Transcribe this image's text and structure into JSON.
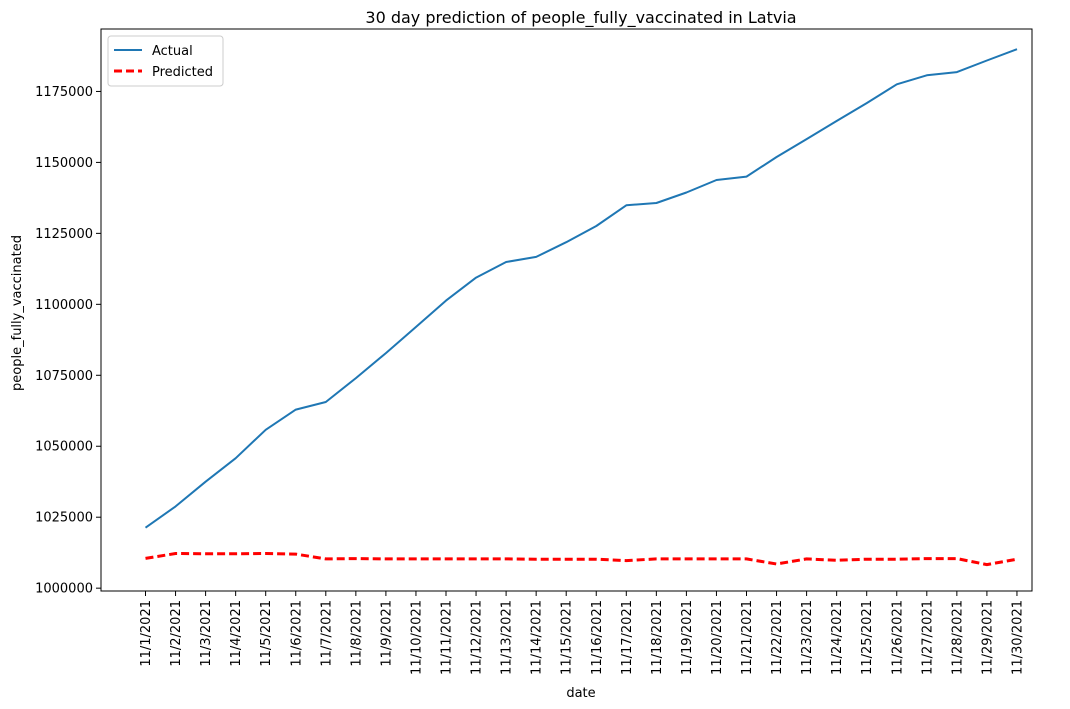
{
  "chart_data": {
    "type": "line",
    "title": "30 day prediction of people_fully_vaccinated in Latvia",
    "xlabel": "date",
    "ylabel": "people_fully_vaccinated",
    "categories": [
      "11/1/2021",
      "11/2/2021",
      "11/3/2021",
      "11/4/2021",
      "11/5/2021",
      "11/6/2021",
      "11/7/2021",
      "11/8/2021",
      "11/9/2021",
      "11/10/2021",
      "11/11/2021",
      "11/12/2021",
      "11/13/2021",
      "11/14/2021",
      "11/15/2021",
      "11/16/2021",
      "11/17/2021",
      "11/18/2021",
      "11/19/2021",
      "11/20/2021",
      "11/21/2021",
      "11/22/2021",
      "11/23/2021",
      "11/24/2021",
      "11/25/2021",
      "11/26/2021",
      "11/27/2021",
      "11/28/2021",
      "11/29/2021",
      "11/30/2021"
    ],
    "ylim": [
      999000,
      1197000
    ],
    "yticks": [
      1000000,
      1025000,
      1050000,
      1075000,
      1100000,
      1125000,
      1150000,
      1175000
    ],
    "ytick_labels": [
      "1000000",
      "1025000",
      "1050000",
      "1075000",
      "1100000",
      "1125000",
      "1150000",
      "1175000"
    ],
    "legend_position": "top-left",
    "grid": false,
    "series": [
      {
        "name": "Actual",
        "color": "#1f77b4",
        "style": "solid",
        "values": [
          1021300,
          1028800,
          1037500,
          1045800,
          1055800,
          1062900,
          1065600,
          1074000,
          1082800,
          1092000,
          1101300,
          1109400,
          1114900,
          1116700,
          1121900,
          1127600,
          1134900,
          1135700,
          1139400,
          1143800,
          1145000,
          1151900,
          1158200,
          1164600,
          1170900,
          1177500,
          1180700,
          1181800,
          1185900,
          1189900
        ]
      },
      {
        "name": "Predicted",
        "color": "#ff0000",
        "style": "dashed",
        "values": [
          1010500,
          1012200,
          1012100,
          1012100,
          1012200,
          1012000,
          1010300,
          1010400,
          1010300,
          1010300,
          1010300,
          1010300,
          1010300,
          1010200,
          1010200,
          1010200,
          1009700,
          1010300,
          1010300,
          1010300,
          1010300,
          1008500,
          1010300,
          1009800,
          1010200,
          1010200,
          1010400,
          1010400,
          1008300,
          1010200
        ]
      }
    ]
  }
}
